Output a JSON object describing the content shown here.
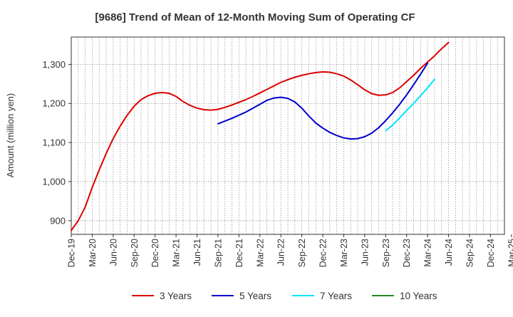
{
  "chart_data": {
    "type": "line",
    "title": "[9686]  Trend of Mean of 12-Month Moving Sum of Operating CF",
    "xlabel": "",
    "ylabel": "Amount (million yen)",
    "ylim": [
      865,
      1370
    ],
    "y_ticks": [
      900,
      1000,
      1100,
      1200,
      1300
    ],
    "y_tick_labels": [
      "900",
      "1,000",
      "1,100",
      "1,200",
      "1,300"
    ],
    "x_tick_labels": [
      "Dec-19",
      "Mar-20",
      "Jun-20",
      "Sep-20",
      "Dec-20",
      "Mar-21",
      "Jun-21",
      "Sep-21",
      "Dec-21",
      "Mar-22",
      "Jun-22",
      "Sep-22",
      "Dec-22",
      "Mar-23",
      "Jun-23",
      "Sep-23",
      "Dec-23",
      "Mar-24",
      "Jun-24",
      "Sep-24",
      "Dec-24",
      "Mar-25"
    ],
    "x_start": "Dec-19",
    "month_count": 63,
    "grid": true,
    "legend_position": "bottom",
    "series": [
      {
        "name": "3 Years",
        "color": "#dd0000",
        "start_index": 0,
        "values": [
          875,
          900,
          935,
          985,
          1030,
          1072,
          1110,
          1142,
          1170,
          1193,
          1210,
          1220,
          1226,
          1228,
          1226,
          1218,
          1205,
          1195,
          1188,
          1184,
          1183,
          1185,
          1190,
          1196,
          1203,
          1210,
          1218,
          1227,
          1236,
          1245,
          1254,
          1261,
          1267,
          1272,
          1276,
          1279,
          1281,
          1280,
          1276,
          1270,
          1260,
          1248,
          1235,
          1225,
          1221,
          1222,
          1228,
          1240,
          1256,
          1272,
          1290,
          1306,
          1322,
          1340,
          1356
        ]
      },
      {
        "name": "5 Years",
        "color": "#0000cc",
        "start_index": 21,
        "values": [
          1148,
          1155,
          1162,
          1170,
          1178,
          1188,
          1198,
          1208,
          1214,
          1216,
          1213,
          1204,
          1188,
          1168,
          1150,
          1137,
          1126,
          1118,
          1112,
          1109,
          1110,
          1115,
          1124,
          1138,
          1156,
          1176,
          1198,
          1222,
          1248,
          1275,
          1303
        ]
      },
      {
        "name": "7 Years",
        "color": "#00e5ff",
        "start_index": 45,
        "values": [
          1130,
          1145,
          1163,
          1182,
          1200,
          1220,
          1240,
          1262
        ]
      },
      {
        "name": "10 Years",
        "color": "#228b22",
        "start_index": 0,
        "values": []
      }
    ]
  }
}
